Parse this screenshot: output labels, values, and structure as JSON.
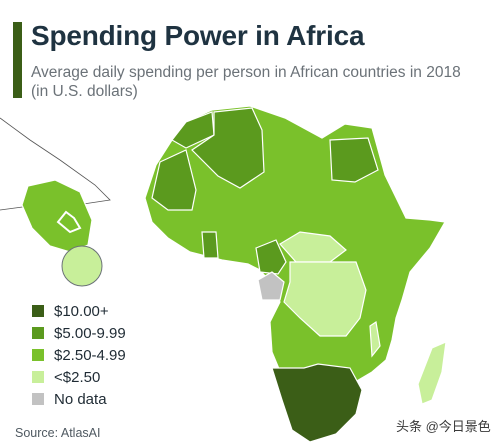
{
  "header": {
    "title": "Spending Power in Africa",
    "subtitle": "Average daily spending per person in African countries in 2018 (in U.S. dollars)"
  },
  "legend": {
    "items": [
      {
        "label": "$10.00+",
        "color": "#3b5e17"
      },
      {
        "label": "$5.00-9.99",
        "color": "#5b9a1e"
      },
      {
        "label": "$2.50-4.99",
        "color": "#7ac12b"
      },
      {
        "label": "<$2.50",
        "color": "#c8ef9a"
      },
      {
        "label": "No data",
        "color": "#c2c2c2"
      }
    ]
  },
  "source": "Source: AtlasAI",
  "watermark": "头条 @今日景色",
  "map_regions": [
    {
      "name": "morocco",
      "category": "$5.00-9.99"
    },
    {
      "name": "algeria",
      "category": "$5.00-9.99"
    },
    {
      "name": "egypt",
      "category": "$5.00-9.99"
    },
    {
      "name": "mauritania",
      "category": "$5.00-9.99"
    },
    {
      "name": "ghana",
      "category": "$5.00-9.99"
    },
    {
      "name": "cameroon",
      "category": "$5.00-9.99"
    },
    {
      "name": "southern-africa",
      "category": "$10.00+"
    },
    {
      "name": "drc",
      "category": "<$2.50"
    },
    {
      "name": "central-african-republic",
      "category": "<$2.50"
    },
    {
      "name": "madagascar",
      "category": "<$2.50"
    },
    {
      "name": "malawi",
      "category": "<$2.50"
    },
    {
      "name": "gabon-equatorial-guinea",
      "category": "No data"
    },
    {
      "name": "rest-of-africa",
      "category": "$2.50-4.99"
    }
  ]
}
